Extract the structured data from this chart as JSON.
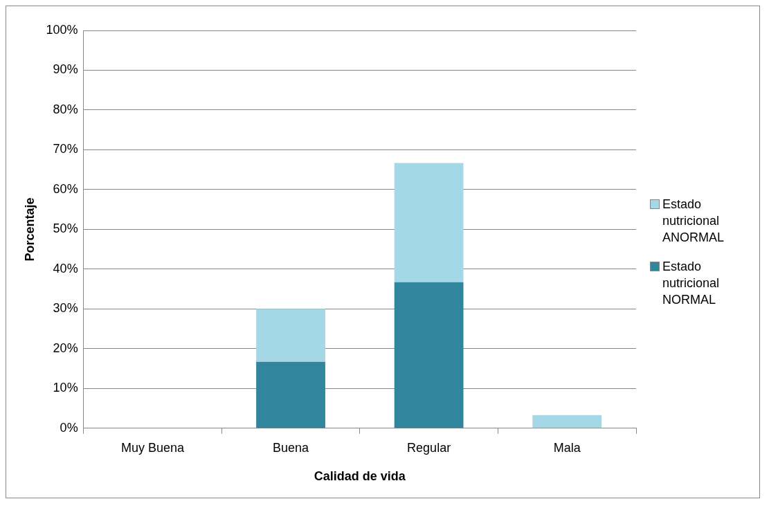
{
  "chart_data": {
    "type": "bar",
    "stacked": true,
    "xlabel": "Calidad de vida",
    "ylabel": "Porcentaje",
    "categories": [
      "Muy Buena",
      "Buena",
      "Regular",
      "Mala"
    ],
    "series": [
      {
        "name": "Estado nutricional NORMAL",
        "color": "#31859c",
        "values": [
          0,
          16.7,
          36.7,
          0
        ]
      },
      {
        "name": "Estado nutricional ANORMAL",
        "color": "#a5d8e6",
        "values": [
          0,
          13.3,
          30,
          3.3
        ]
      }
    ],
    "ylim": [
      0,
      100
    ],
    "yticks": [
      {
        "value": 0,
        "label": "0%"
      },
      {
        "value": 10,
        "label": "10%"
      },
      {
        "value": 20,
        "label": "20%"
      },
      {
        "value": 30,
        "label": "30%"
      },
      {
        "value": 40,
        "label": "40%"
      },
      {
        "value": 50,
        "label": "50%"
      },
      {
        "value": 60,
        "label": "60%"
      },
      {
        "value": 70,
        "label": "70%"
      },
      {
        "value": 80,
        "label": "80%"
      },
      {
        "value": 90,
        "label": "90%"
      },
      {
        "value": 100,
        "label": "100%"
      }
    ],
    "grid": "y",
    "legend": "right"
  }
}
